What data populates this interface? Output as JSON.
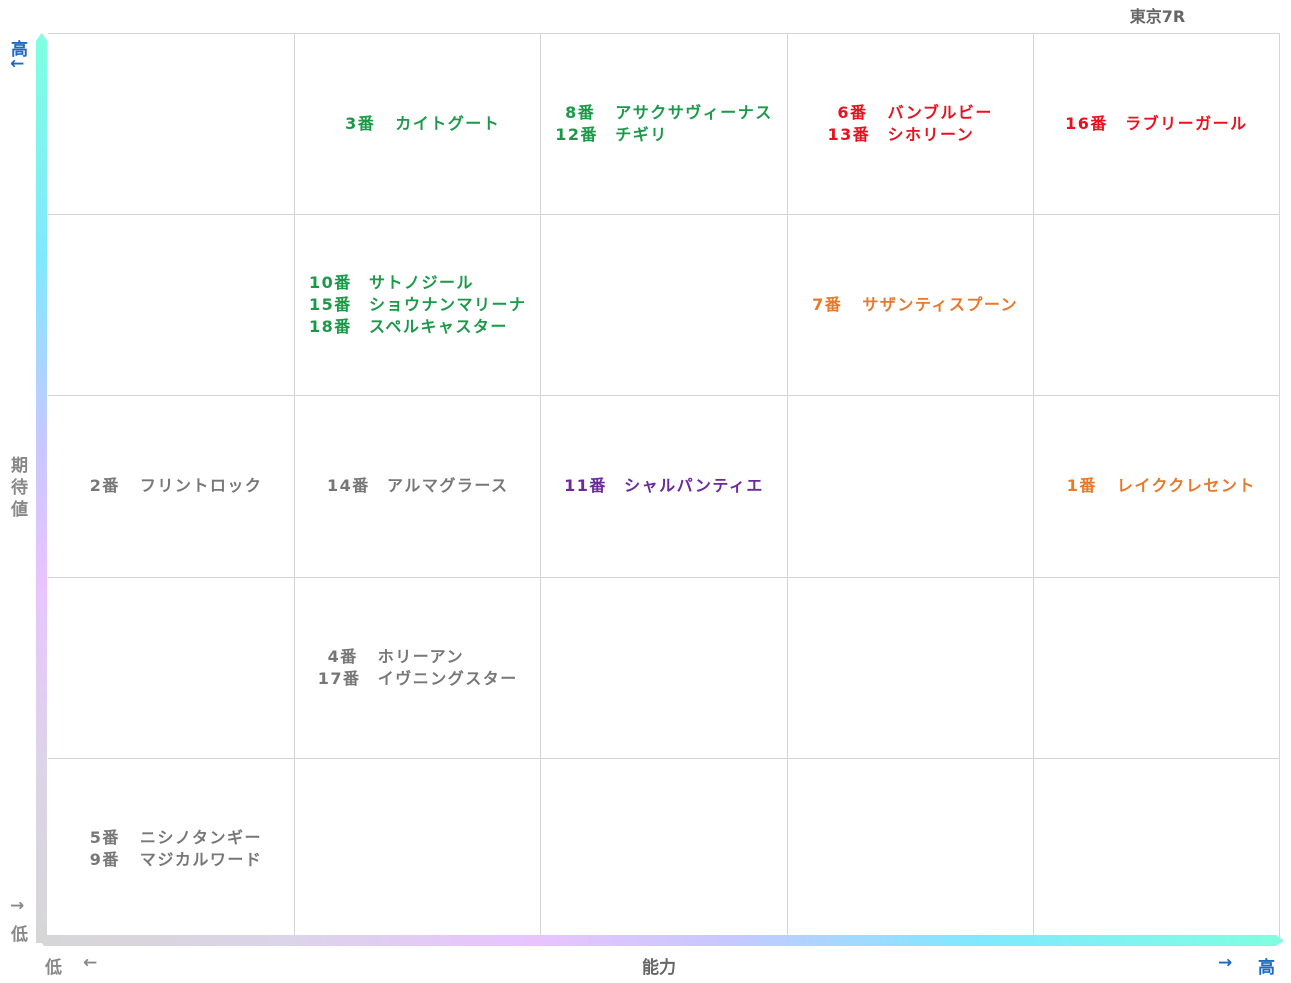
{
  "title": "東京7R",
  "y_axis": {
    "label": "期待値",
    "high": "高",
    "low": "低",
    "high_arrow": "←",
    "low_arrow": "→"
  },
  "x_axis": {
    "label": "能力",
    "high": "高",
    "low": "低",
    "high_arrow": "→",
    "low_arrow": "←"
  },
  "colors": {
    "green": "#1a9a48",
    "red": "#e8121e",
    "orange": "#e8782a",
    "purple": "#6a2a9a",
    "gray": "#777777",
    "axis_high": "#1a6ac0",
    "axis_low": "#888888"
  },
  "levels": 5,
  "cells": [
    {
      "expectation": 5,
      "ability": 2,
      "color": "green",
      "entries": [
        {
          "num": "3番",
          "name": "カイトグート"
        }
      ]
    },
    {
      "expectation": 5,
      "ability": 3,
      "color": "green",
      "entries": [
        {
          "num": "8番",
          "name": "アサクサヴィーナス"
        },
        {
          "num": "12番",
          "name": "チギリ"
        }
      ]
    },
    {
      "expectation": 5,
      "ability": 4,
      "color": "red",
      "entries": [
        {
          "num": "6番",
          "name": "バンブルビー"
        },
        {
          "num": "13番",
          "name": "シホリーン"
        }
      ]
    },
    {
      "expectation": 5,
      "ability": 5,
      "color": "red",
      "entries": [
        {
          "num": "16番",
          "name": "ラブリーガール"
        }
      ]
    },
    {
      "expectation": 4,
      "ability": 2,
      "color": "green",
      "entries": [
        {
          "num": "10番",
          "name": "サトノジール"
        },
        {
          "num": "15番",
          "name": "ショウナンマリーナ"
        },
        {
          "num": "18番",
          "name": "スペルキャスター"
        }
      ]
    },
    {
      "expectation": 4,
      "ability": 4,
      "color": "orange",
      "entries": [
        {
          "num": "7番",
          "name": "サザンティスプーン"
        }
      ]
    },
    {
      "expectation": 3,
      "ability": 1,
      "color": "gray",
      "entries": [
        {
          "num": "2番",
          "name": "フリントロック"
        }
      ]
    },
    {
      "expectation": 3,
      "ability": 2,
      "color": "gray",
      "entries": [
        {
          "num": "14番",
          "name": "アルマグラース"
        }
      ]
    },
    {
      "expectation": 3,
      "ability": 3,
      "color": "purple",
      "entries": [
        {
          "num": "11番",
          "name": "シャルパンティエ"
        }
      ]
    },
    {
      "expectation": 3,
      "ability": 5,
      "color": "orange",
      "entries": [
        {
          "num": "1番",
          "name": "レイククレセント"
        }
      ]
    },
    {
      "expectation": 2,
      "ability": 2,
      "color": "gray",
      "entries": [
        {
          "num": "4番",
          "name": "ホリーアン"
        },
        {
          "num": "17番",
          "name": "イヴニングスター"
        }
      ]
    },
    {
      "expectation": 1,
      "ability": 1,
      "color": "gray",
      "entries": [
        {
          "num": "5番",
          "name": "ニシノタンギー"
        },
        {
          "num": "9番",
          "name": "マジカルワード"
        }
      ]
    }
  ]
}
